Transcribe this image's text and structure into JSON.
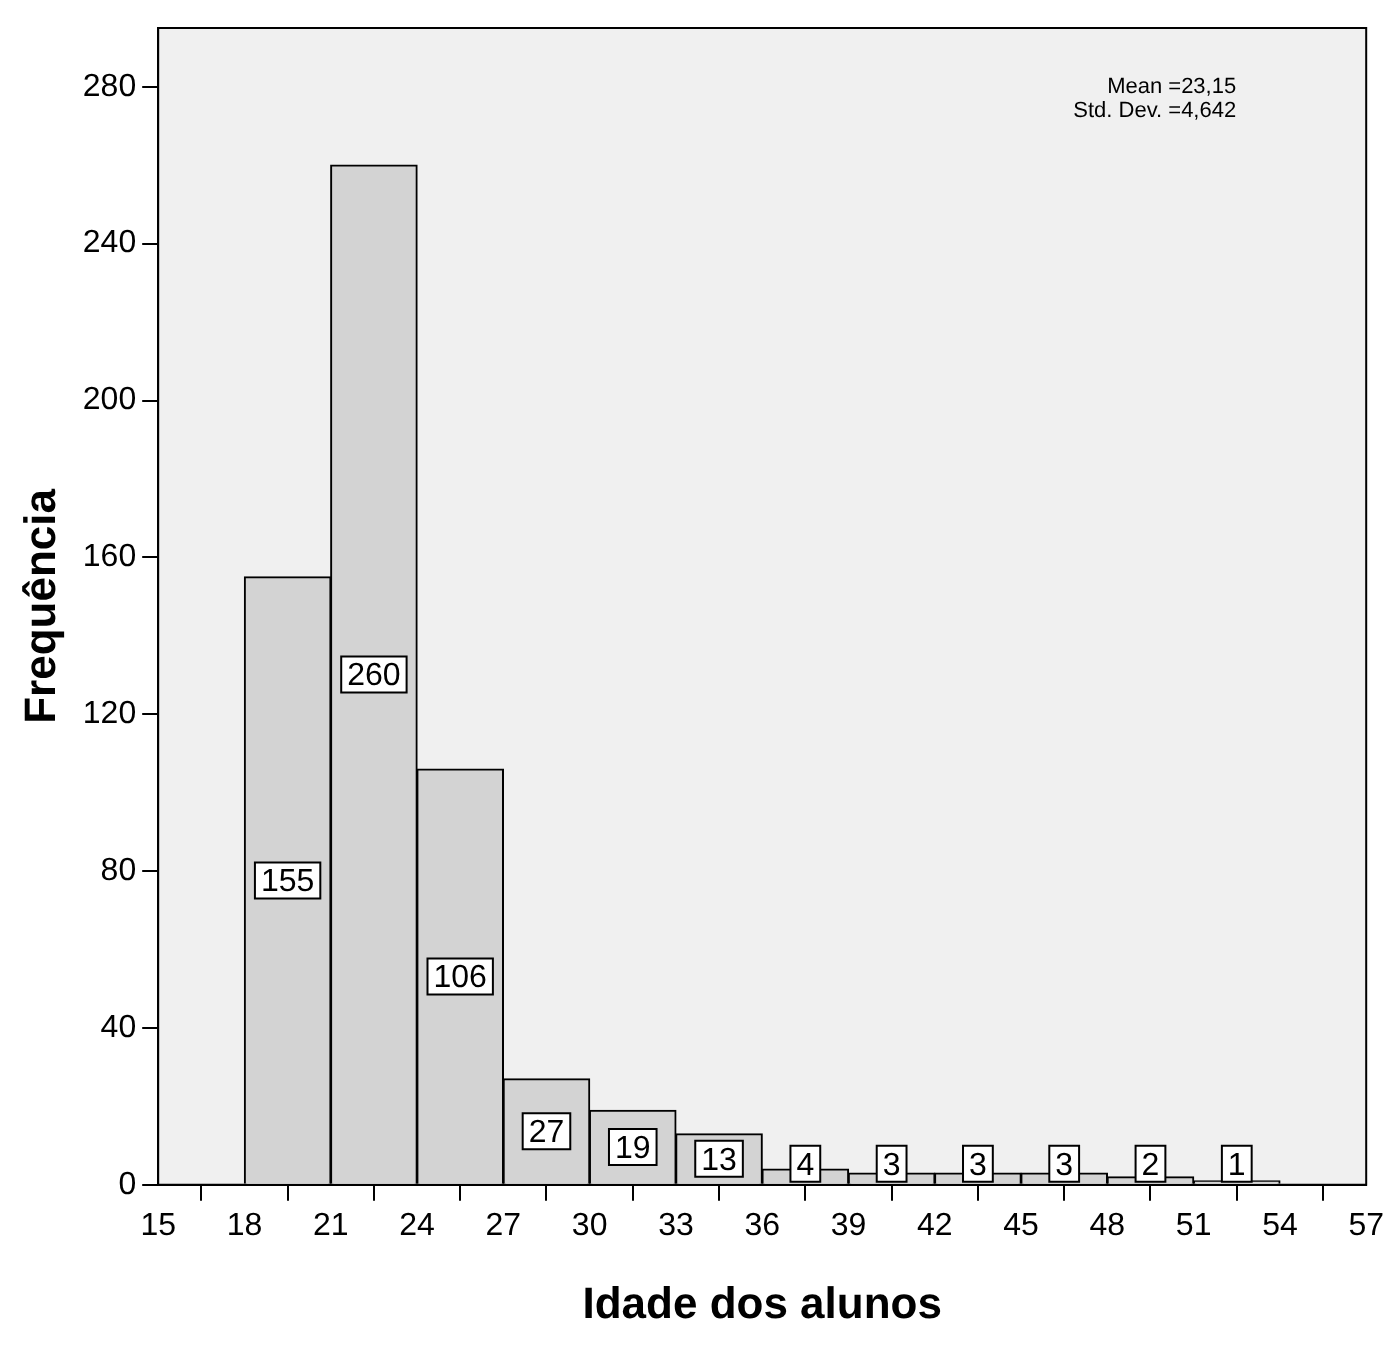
{
  "chart_data": {
    "type": "histogram",
    "xlabel": "Idade dos alunos",
    "ylabel": "Frequência",
    "bins": [
      18,
      21,
      24,
      27,
      30,
      33,
      36,
      39,
      42,
      45,
      48,
      51,
      54
    ],
    "values": [
      155,
      260,
      106,
      27,
      19,
      13,
      4,
      3,
      3,
      3,
      2,
      1
    ],
    "color": "#d3d3d3",
    "xlim": [
      15,
      57
    ],
    "xticks": [
      15,
      18,
      21,
      24,
      27,
      30,
      33,
      36,
      39,
      42,
      45,
      48,
      51,
      54,
      57
    ],
    "ylim": [
      0,
      295
    ],
    "yticks": [
      0,
      40,
      80,
      120,
      160,
      200,
      240,
      280
    ],
    "data_labels": true,
    "grid": false,
    "legend": false,
    "annotations": [
      "Mean =23,15",
      "Std. Dev. =4,642"
    ]
  }
}
